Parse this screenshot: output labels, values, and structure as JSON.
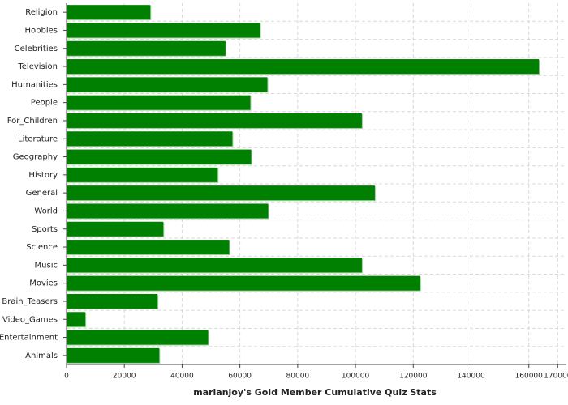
{
  "chart_data": {
    "type": "bar",
    "orientation": "horizontal",
    "title": "marianjoy's Gold Member Cumulative Quiz Stats",
    "categories": [
      "Religion",
      "Hobbies",
      "Celebrities",
      "Television",
      "Humanities",
      "People",
      "For_Children",
      "Literature",
      "Geography",
      "History",
      "General",
      "World",
      "Sports",
      "Science",
      "Music",
      "Movies",
      "Brain_Teasers",
      "Video_Games",
      "Entertainment",
      "Animals"
    ],
    "values": [
      29000,
      67000,
      55000,
      163500,
      69500,
      63600,
      102200,
      57400,
      63900,
      52300,
      106700,
      69800,
      33500,
      56300,
      102200,
      122400,
      31500,
      6500,
      49000,
      32100
    ],
    "color": "#008000",
    "xlim": [
      0,
      173000
    ],
    "xticks": [
      0,
      20000,
      40000,
      60000,
      80000,
      100000,
      120000,
      140000,
      160000,
      170000
    ],
    "grid": true
  }
}
